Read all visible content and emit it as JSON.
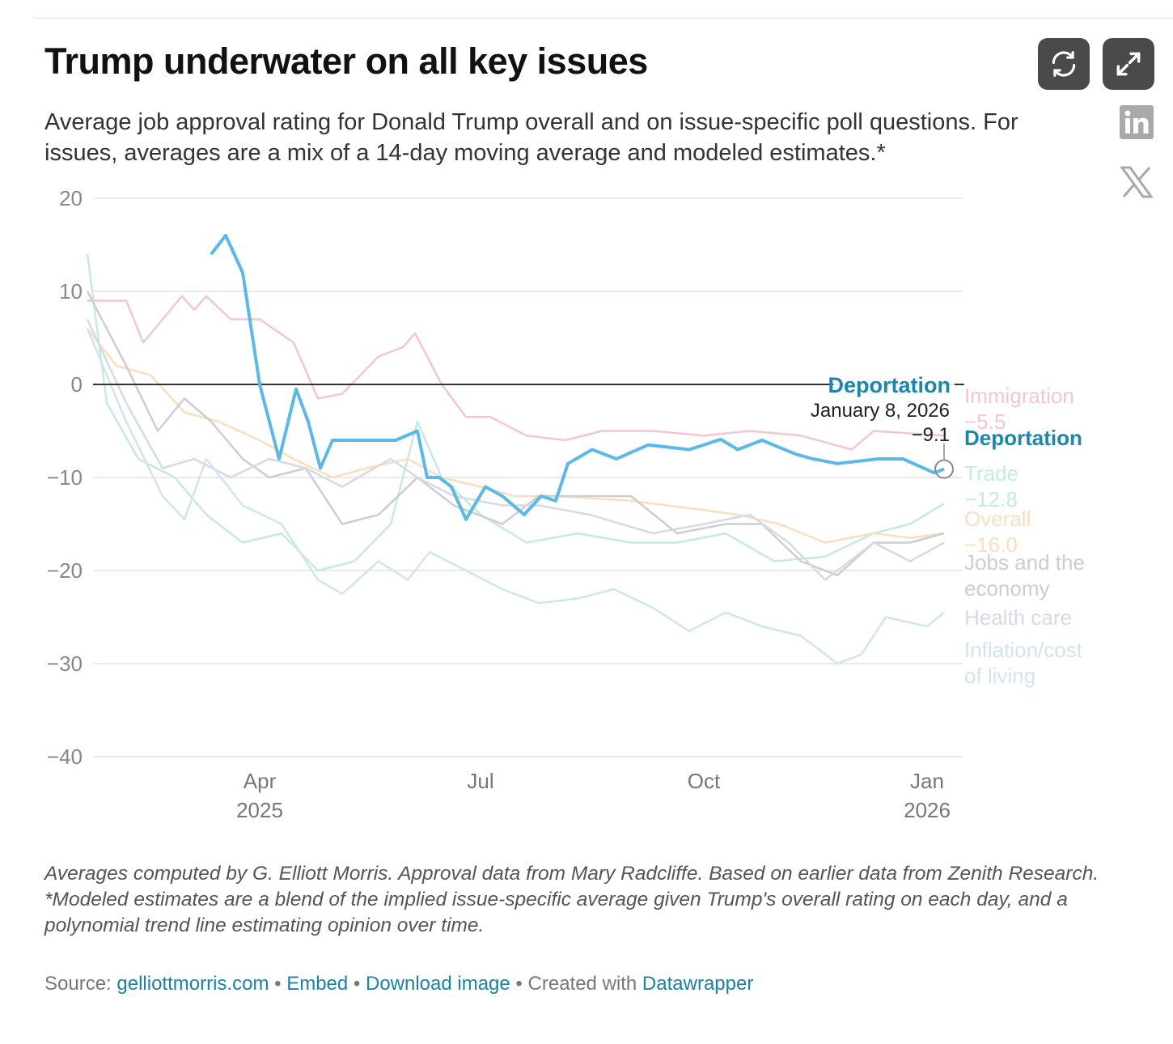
{
  "header": {
    "title": "Trump underwater on all key issues",
    "subtitle": "Average job approval rating for Donald Trump overall and on issue-specific poll questions. For issues, averages are a mix of a 14-day moving average and modeled estimates.*"
  },
  "toolbar": {
    "refresh_icon": "refresh-icon",
    "fullscreen_icon": "expand-icon",
    "share": [
      "linkedin-icon",
      "x-icon"
    ]
  },
  "chart_data": {
    "type": "line",
    "title": "Trump underwater on all key issues",
    "xlabel": "",
    "ylabel": "",
    "ylim": [
      -40,
      20
    ],
    "yticks": [
      "20",
      "10",
      "0",
      "−10",
      "−20",
      "−30",
      "−40"
    ],
    "ytick_values": [
      20,
      10,
      0,
      -10,
      -20,
      -30,
      -40
    ],
    "xticks": [
      {
        "date": "2025-04-01",
        "label": "Apr",
        "label2": "2025"
      },
      {
        "date": "2025-07-01",
        "label": "Jul",
        "label2": ""
      },
      {
        "date": "2025-10-01",
        "label": "Oct",
        "label2": ""
      },
      {
        "date": "2026-01-01",
        "label": "Jan",
        "label2": "2026"
      }
    ],
    "xlim": [
      "2025-01-20",
      "2026-01-08"
    ],
    "grid": true,
    "tooltip": {
      "series": "Deportation",
      "date": "January 8, 2026",
      "value": "−9.1"
    },
    "series": [
      {
        "name": "Immigration",
        "label": "Immigration",
        "value_label": "−5.5",
        "color": "#f2c7cf",
        "values": [
          [
            "2025-01-20",
            9
          ],
          [
            "2025-02-05",
            9
          ],
          [
            "2025-02-12",
            4.5
          ],
          [
            "2025-02-28",
            9.5
          ],
          [
            "2025-03-05",
            8
          ],
          [
            "2025-03-10",
            9.5
          ],
          [
            "2025-03-20",
            7
          ],
          [
            "2025-04-01",
            7
          ],
          [
            "2025-04-15",
            4.5
          ],
          [
            "2025-04-25",
            -1.5
          ],
          [
            "2025-05-05",
            -1
          ],
          [
            "2025-05-20",
            3
          ],
          [
            "2025-05-30",
            4
          ],
          [
            "2025-06-04",
            5.5
          ],
          [
            "2025-06-15",
            0
          ],
          [
            "2025-06-25",
            -3.5
          ],
          [
            "2025-07-05",
            -3.5
          ],
          [
            "2025-07-20",
            -5.5
          ],
          [
            "2025-08-05",
            -6
          ],
          [
            "2025-08-20",
            -5
          ],
          [
            "2025-09-10",
            -5
          ],
          [
            "2025-10-01",
            -5.5
          ],
          [
            "2025-10-20",
            -5
          ],
          [
            "2025-11-10",
            -5.5
          ],
          [
            "2025-12-01",
            -7
          ],
          [
            "2025-12-10",
            -5
          ],
          [
            "2026-01-08",
            -5.5
          ]
        ]
      },
      {
        "name": "Trade",
        "label": "Trade",
        "value_label": "−12.8",
        "color": "#c6eadc",
        "values": [
          [
            "2025-01-20",
            14
          ],
          [
            "2025-01-28",
            -2
          ],
          [
            "2025-02-10",
            -8
          ],
          [
            "2025-02-25",
            -10
          ],
          [
            "2025-03-10",
            -14
          ],
          [
            "2025-03-25",
            -17
          ],
          [
            "2025-04-10",
            -16
          ],
          [
            "2025-04-25",
            -20
          ],
          [
            "2025-05-10",
            -19
          ],
          [
            "2025-05-25",
            -15
          ],
          [
            "2025-06-05",
            -4
          ],
          [
            "2025-06-15",
            -10
          ],
          [
            "2025-07-01",
            -14
          ],
          [
            "2025-07-20",
            -17
          ],
          [
            "2025-08-10",
            -16
          ],
          [
            "2025-09-01",
            -17
          ],
          [
            "2025-09-20",
            -17
          ],
          [
            "2025-10-10",
            -16
          ],
          [
            "2025-10-30",
            -19
          ],
          [
            "2025-11-20",
            -18.5
          ],
          [
            "2025-12-10",
            -16
          ],
          [
            "2025-12-25",
            -15
          ],
          [
            "2026-01-08",
            -12.8
          ]
        ]
      },
      {
        "name": "Overall",
        "label": "Overall",
        "value_label": "−16.0",
        "color": "#fadfbf",
        "values": [
          [
            "2025-01-20",
            6
          ],
          [
            "2025-02-01",
            2
          ],
          [
            "2025-02-15",
            1
          ],
          [
            "2025-03-01",
            -3
          ],
          [
            "2025-03-15",
            -4
          ],
          [
            "2025-04-01",
            -6
          ],
          [
            "2025-04-15",
            -8
          ],
          [
            "2025-05-01",
            -10
          ],
          [
            "2025-05-15",
            -9
          ],
          [
            "2025-06-01",
            -8
          ],
          [
            "2025-06-15",
            -10
          ],
          [
            "2025-07-01",
            -11
          ],
          [
            "2025-07-15",
            -12
          ],
          [
            "2025-08-01",
            -12
          ],
          [
            "2025-09-01",
            -12.5
          ],
          [
            "2025-10-01",
            -13.5
          ],
          [
            "2025-10-15",
            -14
          ],
          [
            "2025-11-01",
            -15
          ],
          [
            "2025-11-20",
            -17
          ],
          [
            "2025-12-10",
            -16
          ],
          [
            "2025-12-25",
            -16.5
          ],
          [
            "2026-01-08",
            -16
          ]
        ]
      },
      {
        "name": "Jobs and the economy",
        "label": "Jobs and the economy",
        "value_label": "",
        "color": "#cdcdd2",
        "values": [
          [
            "2025-01-20",
            10
          ],
          [
            "2025-02-05",
            2
          ],
          [
            "2025-02-18",
            -5
          ],
          [
            "2025-03-01",
            -1.5
          ],
          [
            "2025-03-12",
            -4
          ],
          [
            "2025-03-25",
            -8
          ],
          [
            "2025-04-05",
            -10
          ],
          [
            "2025-04-20",
            -9
          ],
          [
            "2025-05-05",
            -15
          ],
          [
            "2025-05-20",
            -14
          ],
          [
            "2025-06-05",
            -10
          ],
          [
            "2025-06-20",
            -13
          ],
          [
            "2025-07-10",
            -15
          ],
          [
            "2025-07-25",
            -12
          ],
          [
            "2025-08-15",
            -12
          ],
          [
            "2025-09-01",
            -12
          ],
          [
            "2025-09-20",
            -16
          ],
          [
            "2025-10-10",
            -15
          ],
          [
            "2025-10-25",
            -15
          ],
          [
            "2025-11-10",
            -19
          ],
          [
            "2025-11-25",
            -20.5
          ],
          [
            "2025-12-10",
            -17
          ],
          [
            "2025-12-25",
            -17
          ],
          [
            "2026-01-08",
            -16
          ]
        ]
      },
      {
        "name": "Health care",
        "label": "Health care",
        "value_label": "",
        "color": "#d6d9e8",
        "values": [
          [
            "2025-01-20",
            7
          ],
          [
            "2025-02-05",
            -2
          ],
          [
            "2025-02-20",
            -9
          ],
          [
            "2025-03-05",
            -8
          ],
          [
            "2025-03-20",
            -10
          ],
          [
            "2025-04-05",
            -8
          ],
          [
            "2025-04-20",
            -9
          ],
          [
            "2025-05-05",
            -11
          ],
          [
            "2025-05-25",
            -8
          ],
          [
            "2025-06-05",
            -10
          ],
          [
            "2025-06-20",
            -12
          ],
          [
            "2025-07-10",
            -13
          ],
          [
            "2025-07-25",
            -13
          ],
          [
            "2025-08-15",
            -14
          ],
          [
            "2025-09-10",
            -16
          ],
          [
            "2025-10-01",
            -15
          ],
          [
            "2025-10-20",
            -14
          ],
          [
            "2025-11-05",
            -17
          ],
          [
            "2025-11-20",
            -21
          ],
          [
            "2025-12-10",
            -17
          ],
          [
            "2025-12-25",
            -19
          ],
          [
            "2026-01-08",
            -17
          ]
        ]
      },
      {
        "name": "Inflation/cost of living",
        "label": "Inflation/cost of living",
        "value_label": "",
        "color": "#d0e5ee",
        "values": [
          [
            "2025-01-20",
            6
          ],
          [
            "2025-02-05",
            -4
          ],
          [
            "2025-02-20",
            -12
          ],
          [
            "2025-03-01",
            -14.5
          ],
          [
            "2025-03-10",
            -8
          ],
          [
            "2025-03-25",
            -13
          ],
          [
            "2025-04-10",
            -15
          ],
          [
            "2025-04-25",
            -21
          ],
          [
            "2025-05-05",
            -22.5
          ],
          [
            "2025-05-20",
            -19
          ],
          [
            "2025-06-01",
            -21
          ],
          [
            "2025-06-10",
            -18
          ],
          [
            "2025-06-25",
            -20
          ],
          [
            "2025-07-10",
            -22
          ],
          [
            "2025-07-25",
            -23.5
          ],
          [
            "2025-08-10",
            -23
          ],
          [
            "2025-08-25",
            -22
          ],
          [
            "2025-09-10",
            -24
          ],
          [
            "2025-09-25",
            -26.5
          ],
          [
            "2025-10-10",
            -24.5
          ],
          [
            "2025-10-25",
            -26
          ],
          [
            "2025-11-10",
            -27
          ],
          [
            "2025-11-25",
            -30
          ],
          [
            "2025-12-05",
            -29
          ],
          [
            "2025-12-15",
            -25
          ],
          [
            "2026-01-01",
            -26
          ],
          [
            "2026-01-08",
            -24.5
          ]
        ]
      },
      {
        "name": "Deportation",
        "label": "Deportation",
        "value_label": "",
        "color": "#5cb8e5",
        "label_color": "#1f86ab",
        "highlight": true,
        "values": [
          [
            "2025-03-12",
            14
          ],
          [
            "2025-03-18",
            16
          ],
          [
            "2025-03-25",
            12
          ],
          [
            "2025-04-01",
            0
          ],
          [
            "2025-04-09",
            -8
          ],
          [
            "2025-04-16",
            -0.5
          ],
          [
            "2025-04-21",
            -4
          ],
          [
            "2025-04-26",
            -9
          ],
          [
            "2025-05-01",
            -6
          ],
          [
            "2025-05-17",
            -6
          ],
          [
            "2025-05-27",
            -6
          ],
          [
            "2025-06-05",
            -5
          ],
          [
            "2025-06-09",
            -10
          ],
          [
            "2025-06-14",
            -10
          ],
          [
            "2025-06-19",
            -11
          ],
          [
            "2025-06-25",
            -14.5
          ],
          [
            "2025-07-03",
            -11
          ],
          [
            "2025-07-10",
            -12
          ],
          [
            "2025-07-19",
            -14
          ],
          [
            "2025-07-26",
            -12
          ],
          [
            "2025-08-01",
            -12.5
          ],
          [
            "2025-08-06",
            -8.5
          ],
          [
            "2025-08-16",
            -7
          ],
          [
            "2025-08-26",
            -8
          ],
          [
            "2025-09-08",
            -6.5
          ],
          [
            "2025-09-25",
            -7
          ],
          [
            "2025-10-08",
            -5.9
          ],
          [
            "2025-10-15",
            -7
          ],
          [
            "2025-10-25",
            -6
          ],
          [
            "2025-11-08",
            -7.5
          ],
          [
            "2025-11-15",
            -8
          ],
          [
            "2025-11-25",
            -8.5
          ],
          [
            "2025-12-12",
            -8
          ],
          [
            "2025-12-22",
            -8
          ],
          [
            "2026-01-04",
            -9.5
          ],
          [
            "2026-01-08",
            -9.1
          ]
        ]
      }
    ]
  },
  "footer": {
    "note1": "Averages computed by G. Elliott Morris. Approval data from Mary Radcliffe. Based on earlier data from Zenith Research.",
    "note2": "*Modeled estimates are a blend of the implied issue-specific average given Trump's overall rating on each day, and a polynomial trend line estimating opinion over time.",
    "source_label": "Source:",
    "source_link": "gelliottmorris.com",
    "sep": " • ",
    "embed": "Embed",
    "download": "Download image",
    "created": "Created with",
    "datawrapper": "Datawrapper"
  }
}
